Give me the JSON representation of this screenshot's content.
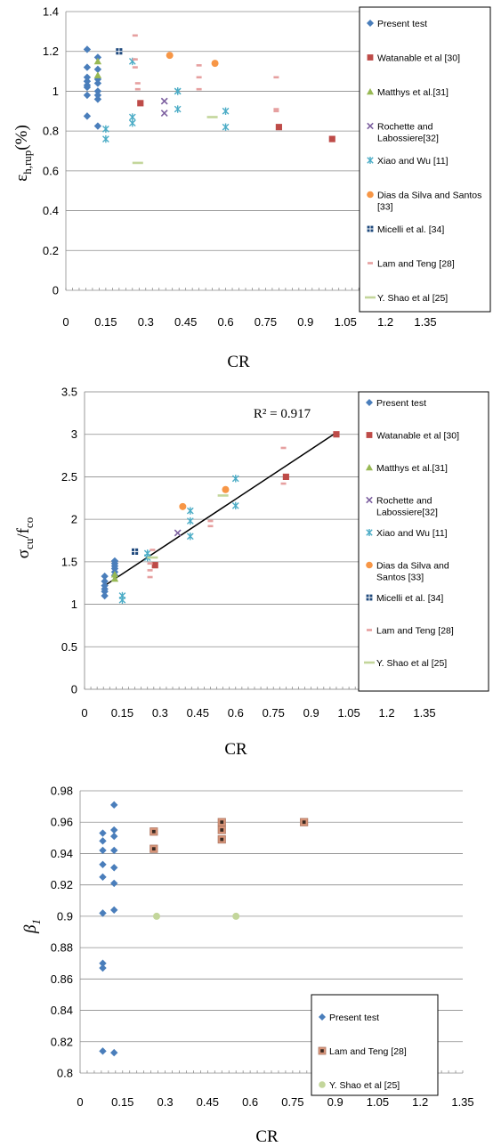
{
  "chart_data": [
    {
      "id": "chart1",
      "type": "scatter",
      "title": "",
      "xlabel": "CR",
      "ylabel_parts": {
        "main": "ε",
        "sub": "h,rup",
        "tail": "(%)"
      },
      "xlim": [
        0,
        1.35
      ],
      "ylim": [
        0,
        1.4
      ],
      "xticks": [
        "0",
        "0.15",
        "0.3",
        "0.45",
        "0.6",
        "0.75",
        "0.9",
        "1.05",
        "1.2",
        "1.35"
      ],
      "yticks": [
        "0",
        "0.2",
        "0.4",
        "0.6",
        "0.8",
        "1",
        "1.2",
        "1.4"
      ],
      "grid": true,
      "legend_position": "right",
      "series": [
        {
          "name": "Present test",
          "marker": "diamond",
          "color": "#4a7ebb",
          "points": [
            [
              0.08,
              1.21
            ],
            [
              0.08,
              1.12
            ],
            [
              0.08,
              1.07
            ],
            [
              0.08,
              1.05
            ],
            [
              0.08,
              1.03
            ],
            [
              0.08,
              1.02
            ],
            [
              0.08,
              0.98
            ],
            [
              0.08,
              0.875
            ],
            [
              0.12,
              1.17
            ],
            [
              0.12,
              1.11
            ],
            [
              0.12,
              1.06
            ],
            [
              0.12,
              1.04
            ],
            [
              0.12,
              1.0
            ],
            [
              0.12,
              0.98
            ],
            [
              0.12,
              0.96
            ],
            [
              0.12,
              0.825
            ]
          ]
        },
        {
          "name": "Watanable et al [30]",
          "marker": "square",
          "color": "#be4b48",
          "points": [
            [
              0.28,
              0.94
            ],
            [
              0.8,
              0.82
            ],
            [
              1.0,
              0.76
            ]
          ]
        },
        {
          "name": "Matthys et al.[31]",
          "marker": "triangle",
          "color": "#98b954",
          "points": [
            [
              0.12,
              1.15
            ],
            [
              0.12,
              1.08
            ]
          ]
        },
        {
          "name": "Rochette and Labossiere[32]",
          "marker": "x",
          "color": "#7d60a0",
          "points": [
            [
              0.37,
              0.95
            ],
            [
              0.37,
              0.89
            ]
          ]
        },
        {
          "name": "Xiao and Wu [11]",
          "marker": "asterisk",
          "color": "#4bacc6",
          "points": [
            [
              0.25,
              1.15
            ],
            [
              0.25,
              0.87
            ],
            [
              0.25,
              0.84
            ],
            [
              0.15,
              0.81
            ],
            [
              0.15,
              0.76
            ],
            [
              0.42,
              1.0
            ],
            [
              0.42,
              1.0
            ],
            [
              0.42,
              0.91
            ],
            [
              0.6,
              0.9
            ],
            [
              0.6,
              0.82
            ]
          ]
        },
        {
          "name": "Dias da Silva and Santos [33]",
          "marker": "circle",
          "color": "#f79646",
          "points": [
            [
              0.39,
              1.18
            ],
            [
              0.56,
              1.14
            ]
          ]
        },
        {
          "name": "Micelli et al. [34]",
          "marker": "plus-square",
          "color": "#1f497d",
          "points": [
            [
              0.2,
              1.2
            ]
          ]
        },
        {
          "name": "Lam and Teng [28]",
          "marker": "dash",
          "color": "#e6a0a0",
          "points": [
            [
              0.26,
              1.28
            ],
            [
              0.26,
              1.16
            ],
            [
              0.26,
              1.12
            ],
            [
              0.27,
              1.04
            ],
            [
              0.27,
              1.01
            ],
            [
              0.5,
              1.13
            ],
            [
              0.5,
              1.07
            ],
            [
              0.5,
              1.01
            ],
            [
              0.79,
              1.07
            ],
            [
              0.79,
              0.91
            ],
            [
              0.79,
              0.9
            ]
          ]
        },
        {
          "name": "Y. Shao et al [25]",
          "marker": "hbar",
          "color": "#c3d69b",
          "points": [
            [
              0.27,
              0.64
            ],
            [
              0.55,
              0.87
            ]
          ]
        }
      ]
    },
    {
      "id": "chart2",
      "type": "scatter",
      "title": "",
      "xlabel": "CR",
      "ylabel_parts": {
        "main": "σ",
        "sub1": "cu",
        "mid": "/f",
        "sub2": "co"
      },
      "xlim": [
        0,
        1.35
      ],
      "ylim": [
        0,
        3.5
      ],
      "xticks": [
        "0",
        "0.15",
        "0.3",
        "0.45",
        "0.6",
        "0.75",
        "0.9",
        "1.05",
        "1.2",
        "1.35"
      ],
      "yticks": [
        "0",
        "0.5",
        "1",
        "1.5",
        "2",
        "2.5",
        "3",
        "3.5"
      ],
      "grid": true,
      "legend_position": "right",
      "annotation": "R² = 0.917",
      "trendline": [
        [
          0.08,
          1.22
        ],
        [
          1.0,
          3.02
        ]
      ],
      "series": [
        {
          "name": "Present test",
          "marker": "diamond",
          "color": "#4a7ebb",
          "points": [
            [
              0.08,
              1.33
            ],
            [
              0.08,
              1.27
            ],
            [
              0.08,
              1.22
            ],
            [
              0.08,
              1.18
            ],
            [
              0.08,
              1.15
            ],
            [
              0.08,
              1.1
            ],
            [
              0.12,
              1.51
            ],
            [
              0.12,
              1.48
            ],
            [
              0.12,
              1.45
            ],
            [
              0.12,
              1.42
            ],
            [
              0.12,
              1.38
            ],
            [
              0.12,
              1.34
            ]
          ]
        },
        {
          "name": "Watanable et al [30]",
          "marker": "square",
          "color": "#be4b48",
          "points": [
            [
              0.28,
              1.46
            ],
            [
              0.8,
              2.5
            ],
            [
              1.0,
              3.0
            ]
          ]
        },
        {
          "name": "Matthys et al.[31]",
          "marker": "triangle",
          "color": "#98b954",
          "points": [
            [
              0.12,
              1.3
            ],
            [
              0.12,
              1.35
            ]
          ]
        },
        {
          "name": "Rochette and Labossiere[32]",
          "marker": "x",
          "color": "#7d60a0",
          "points": [
            [
              0.37,
              1.84
            ]
          ]
        },
        {
          "name": "Xiao and Wu [11]",
          "marker": "asterisk",
          "color": "#4bacc6",
          "points": [
            [
              0.15,
              1.1
            ],
            [
              0.15,
              1.05
            ],
            [
              0.25,
              1.6
            ],
            [
              0.25,
              1.55
            ],
            [
              0.42,
              2.1
            ],
            [
              0.42,
              1.98
            ],
            [
              0.42,
              1.8
            ],
            [
              0.6,
              2.48
            ],
            [
              0.6,
              2.16
            ]
          ]
        },
        {
          "name": "Dias da Silva and Santos [33]",
          "marker": "circle",
          "color": "#f79646",
          "points": [
            [
              0.39,
              2.15
            ],
            [
              0.56,
              2.35
            ]
          ]
        },
        {
          "name": "Micelli et al. [34]",
          "marker": "plus-square",
          "color": "#1f497d",
          "points": [
            [
              0.2,
              1.62
            ]
          ]
        },
        {
          "name": "Lam and Teng [28]",
          "marker": "dash",
          "color": "#e6a0a0",
          "points": [
            [
              0.26,
              1.48
            ],
            [
              0.26,
              1.4
            ],
            [
              0.26,
              1.32
            ],
            [
              0.5,
              1.98
            ],
            [
              0.5,
              1.92
            ],
            [
              0.79,
              2.84
            ],
            [
              0.79,
              2.42
            ],
            [
              0.27,
              1.64
            ]
          ]
        },
        {
          "name": "Y. Shao et al [25]",
          "marker": "hbar",
          "color": "#c3d69b",
          "points": [
            [
              0.27,
              1.55
            ],
            [
              0.55,
              2.28
            ]
          ]
        }
      ]
    },
    {
      "id": "chart3",
      "type": "scatter",
      "title": "",
      "xlabel": "CR",
      "ylabel_parts": {
        "main": "β",
        "sub": "1"
      },
      "xlim": [
        0,
        1.35
      ],
      "ylim": [
        0.8,
        0.98
      ],
      "xticks": [
        "0",
        "0.15",
        "0.3",
        "0.45",
        "0.6",
        "0.75",
        "0.9",
        "1.05",
        "1.2",
        "1.35"
      ],
      "yticks": [
        "0.8",
        "0.82",
        "0.84",
        "0.86",
        "0.88",
        "0.9",
        "0.92",
        "0.94",
        "0.96",
        "0.98"
      ],
      "grid": true,
      "legend_position": "lower-right",
      "series": [
        {
          "name": "Present test",
          "marker": "diamond",
          "color": "#4a7ebb",
          "points": [
            [
              0.08,
              0.953
            ],
            [
              0.08,
              0.948
            ],
            [
              0.08,
              0.942
            ],
            [
              0.08,
              0.933
            ],
            [
              0.08,
              0.925
            ],
            [
              0.08,
              0.902
            ],
            [
              0.08,
              0.87
            ],
            [
              0.08,
              0.867
            ],
            [
              0.08,
              0.814
            ],
            [
              0.12,
              0.971
            ],
            [
              0.12,
              0.955
            ],
            [
              0.12,
              0.951
            ],
            [
              0.12,
              0.942
            ],
            [
              0.12,
              0.931
            ],
            [
              0.12,
              0.921
            ],
            [
              0.12,
              0.904
            ],
            [
              0.12,
              0.813
            ]
          ]
        },
        {
          "name": "Lam and Teng [28]",
          "marker": "framed-square",
          "color": "#c0504d",
          "points": [
            [
              0.26,
              0.954
            ],
            [
              0.26,
              0.943
            ],
            [
              0.5,
              0.96
            ],
            [
              0.5,
              0.955
            ],
            [
              0.5,
              0.949
            ],
            [
              0.79,
              0.96
            ]
          ]
        },
        {
          "name": "Y. Shao et al [25]",
          "marker": "circle",
          "color": "#c3d69b",
          "points": [
            [
              0.27,
              0.9
            ],
            [
              0.55,
              0.9
            ]
          ]
        }
      ]
    }
  ]
}
